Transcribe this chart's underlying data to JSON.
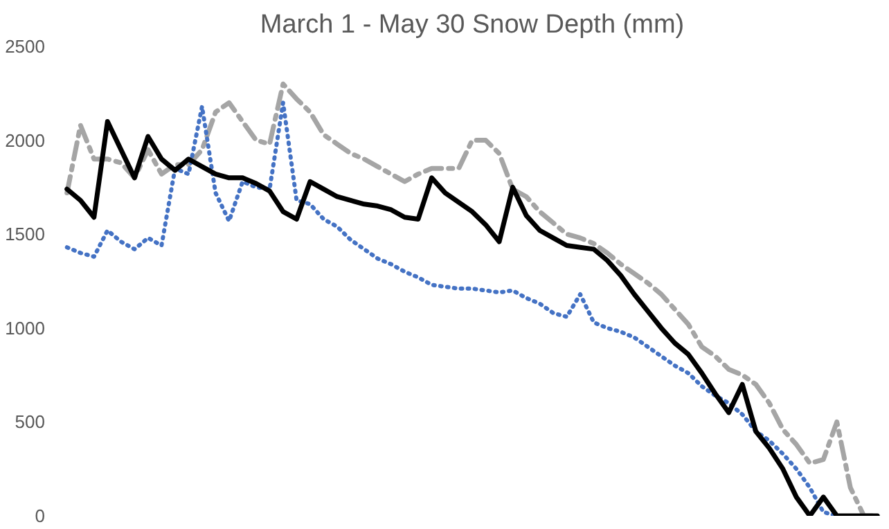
{
  "chart_data": {
    "type": "line",
    "title": "March 1 - May 30 Snow Depth (mm)",
    "categories": [
      null,
      null,
      null,
      null,
      null,
      null,
      null,
      null,
      null,
      null,
      null,
      null,
      null,
      null,
      null,
      null,
      null,
      null,
      null,
      null,
      null,
      null,
      null,
      null,
      null,
      null,
      null,
      null,
      null,
      null,
      null,
      null,
      null,
      null,
      null,
      null,
      null,
      null,
      null,
      null,
      null,
      null,
      null,
      null,
      null,
      null,
      null,
      null,
      null,
      null,
      null,
      null,
      null,
      null,
      null,
      null,
      null,
      null,
      null,
      null,
      null
    ],
    "series": [
      {
        "color": "#a5a5a5",
        "line_style": "dashed",
        "values": [
          1720,
          2080,
          1900,
          1900,
          1880,
          1800,
          1950,
          1820,
          1870,
          1870,
          1950,
          2150,
          2200,
          2100,
          2000,
          1980,
          2300,
          2220,
          2150,
          2030,
          1980,
          1930,
          1900,
          1860,
          1820,
          1780,
          1820,
          1850,
          1850,
          1850,
          2000,
          2000,
          1930,
          1740,
          1700,
          1620,
          1560,
          1500,
          1480,
          1450,
          1400,
          1340,
          1290,
          1240,
          1180,
          1100,
          1020,
          900,
          850,
          780,
          750,
          700,
          600,
          460,
          380,
          280,
          300,
          500,
          150,
          0,
          0
        ]
      },
      {
        "color": "#4472c4",
        "line_style": "dotted",
        "values": [
          1430,
          1400,
          1380,
          1520,
          1460,
          1420,
          1480,
          1440,
          1850,
          1820,
          2180,
          1720,
          1570,
          1780,
          1750,
          1740,
          2200,
          1680,
          1660,
          1580,
          1540,
          1470,
          1420,
          1370,
          1340,
          1300,
          1270,
          1230,
          1220,
          1210,
          1210,
          1200,
          1190,
          1200,
          1160,
          1130,
          1080,
          1060,
          1180,
          1030,
          1000,
          980,
          950,
          900,
          850,
          800,
          760,
          690,
          640,
          600,
          540,
          450,
          400,
          330,
          250,
          150,
          20,
          0,
          0,
          null,
          null
        ]
      },
      {
        "color": "#000000",
        "line_style": "solid",
        "values": [
          1740,
          1680,
          1590,
          2100,
          1950,
          1800,
          2020,
          1900,
          1840,
          1900,
          1860,
          1820,
          1800,
          1800,
          1770,
          1730,
          1620,
          1580,
          1780,
          1740,
          1700,
          1680,
          1660,
          1650,
          1630,
          1590,
          1580,
          1800,
          1720,
          1670,
          1620,
          1550,
          1460,
          1750,
          1600,
          1520,
          1480,
          1440,
          1430,
          1420,
          1360,
          1280,
          1180,
          1090,
          1000,
          920,
          860,
          760,
          650,
          550,
          700,
          450,
          360,
          250,
          100,
          0,
          100,
          0,
          0,
          0,
          0
        ]
      }
    ],
    "ylim": [
      0,
      2500
    ],
    "yticks": [
      0,
      500,
      1000,
      1500,
      2000,
      2500
    ],
    "grid": false,
    "marker": "none"
  }
}
